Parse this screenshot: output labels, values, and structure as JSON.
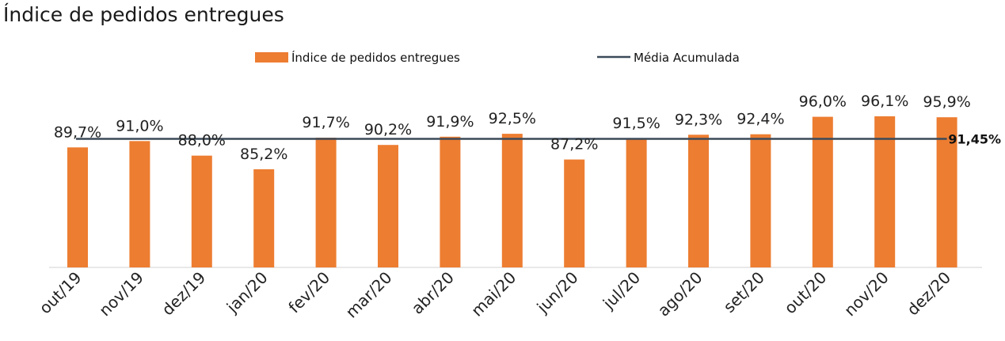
{
  "chart_data": {
    "type": "bar",
    "title": "Índice de pedidos entregues",
    "categories": [
      "out/19",
      "nov/19",
      "dez/19",
      "jan/20",
      "fev/20",
      "mar/20",
      "abr/20",
      "mai/20",
      "jun/20",
      "jul/20",
      "ago/20",
      "set/20",
      "out/20",
      "nov/20",
      "dez/20"
    ],
    "series": [
      {
        "name": "Índice de pedidos entregues",
        "type": "bar",
        "values": [
          89.7,
          91.0,
          88.0,
          85.2,
          91.7,
          90.2,
          91.9,
          92.5,
          87.2,
          91.5,
          92.3,
          92.4,
          96.0,
          96.1,
          95.9
        ],
        "labels": [
          "89,7%",
          "91,0%",
          "88,0%",
          "85,2%",
          "91,7%",
          "90,2%",
          "91,9%",
          "92,5%",
          "87,2%",
          "91,5%",
          "92,3%",
          "92,4%",
          "96,0%",
          "96,1%",
          "95,9%"
        ],
        "color": "#ED7D31"
      },
      {
        "name": "Média Acumulada",
        "type": "line",
        "value": 91.45,
        "label": "91,45%",
        "color": "#3B4A59"
      }
    ],
    "ylim": [
      65,
      100
    ],
    "grid": false,
    "legend": "top-center",
    "xlabel": "",
    "ylabel": ""
  }
}
